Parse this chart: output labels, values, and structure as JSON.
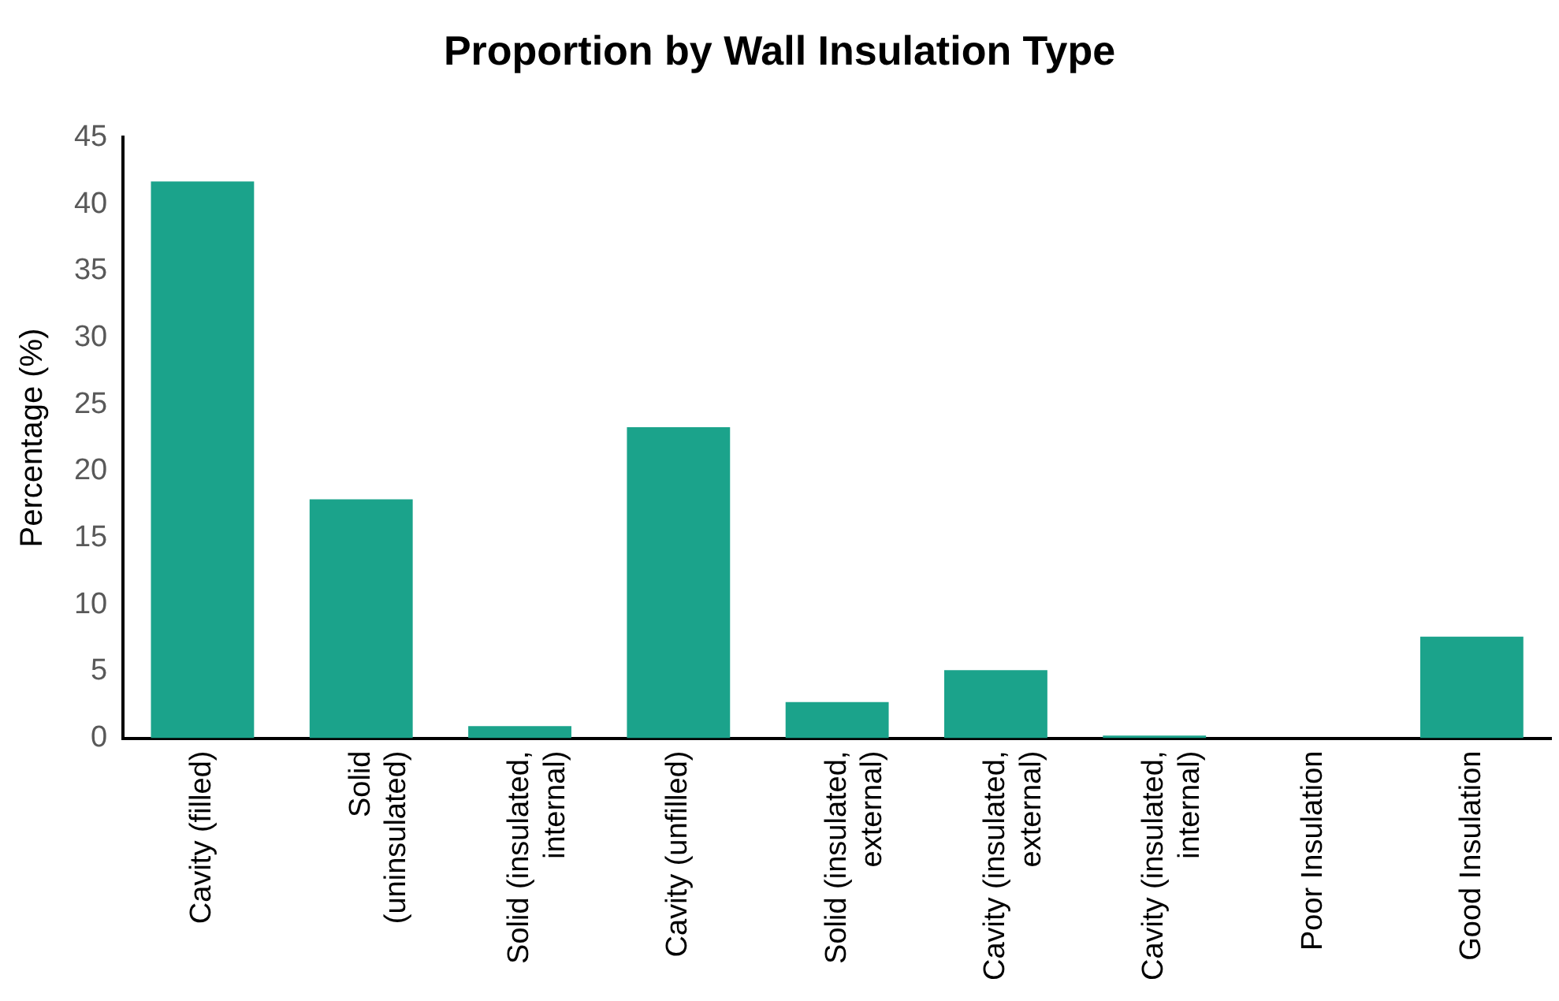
{
  "chart_data": {
    "type": "bar",
    "title": "Proportion by Wall Insulation Type",
    "ylabel": "Percentage (%)",
    "categories": [
      "Cavity (filled)",
      "Solid (uninsulated)",
      "Solid (insulated, internal)",
      "Cavity (unfilled)",
      "Solid (insulated, external)",
      "Cavity (insulated, external)",
      "Cavity (insulated, internal)",
      "Poor Insulation",
      "Good Insulation"
    ],
    "values": [
      41.7,
      17.9,
      0.9,
      23.3,
      2.7,
      5.1,
      0.2,
      0,
      7.6
    ],
    "color": "#1ba38b",
    "ylim": [
      0,
      45
    ],
    "yticks": [
      0,
      5,
      10,
      15,
      20,
      25,
      30,
      35,
      40,
      45
    ],
    "grid": false,
    "legend": false
  }
}
